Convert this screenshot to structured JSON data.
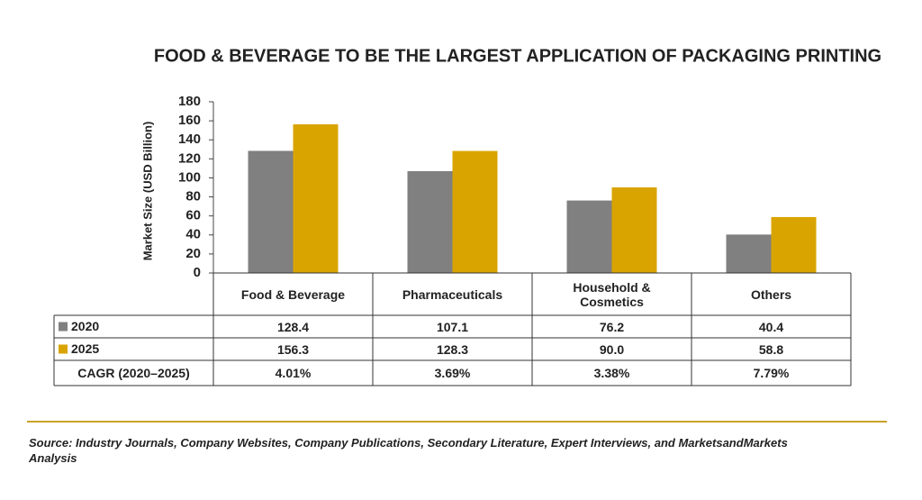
{
  "chart_data": {
    "type": "bar",
    "title": "FOOD & BEVERAGE TO BE THE LARGEST APPLICATION OF PACKAGING PRINTING",
    "y_label": "Market Size (USD Billion)",
    "categories": [
      "Food & Beverage",
      "Pharmaceuticals",
      "Household & Cosmetics",
      "Others"
    ],
    "series": [
      {
        "name": "2020",
        "color": "#808080",
        "values": [
          128.4,
          107.1,
          76.2,
          40.4
        ],
        "value_labels": [
          "128.4",
          "107.1",
          "76.2",
          "40.4"
        ]
      },
      {
        "name": "2025",
        "color": "#d9a400",
        "values": [
          156.3,
          128.3,
          90.0,
          58.8
        ],
        "value_labels": [
          "156.3",
          "128.3",
          "90.0",
          "58.8"
        ]
      }
    ],
    "cagr": {
      "label": "CAGR (2020–2025)",
      "values": [
        4.01,
        3.69,
        3.38,
        7.79
      ],
      "value_labels": [
        "4.01%",
        "3.69%",
        "3.38%",
        "7.79%"
      ]
    },
    "ylim": [
      0,
      180
    ],
    "yticks": [
      0,
      20,
      40,
      60,
      80,
      100,
      120,
      140,
      160,
      180
    ],
    "source": "Source: Industry Journals, Company Websites, Company Publications, Secondary Literature, Expert Interviews, and MarketsandMarkets Analysis"
  }
}
